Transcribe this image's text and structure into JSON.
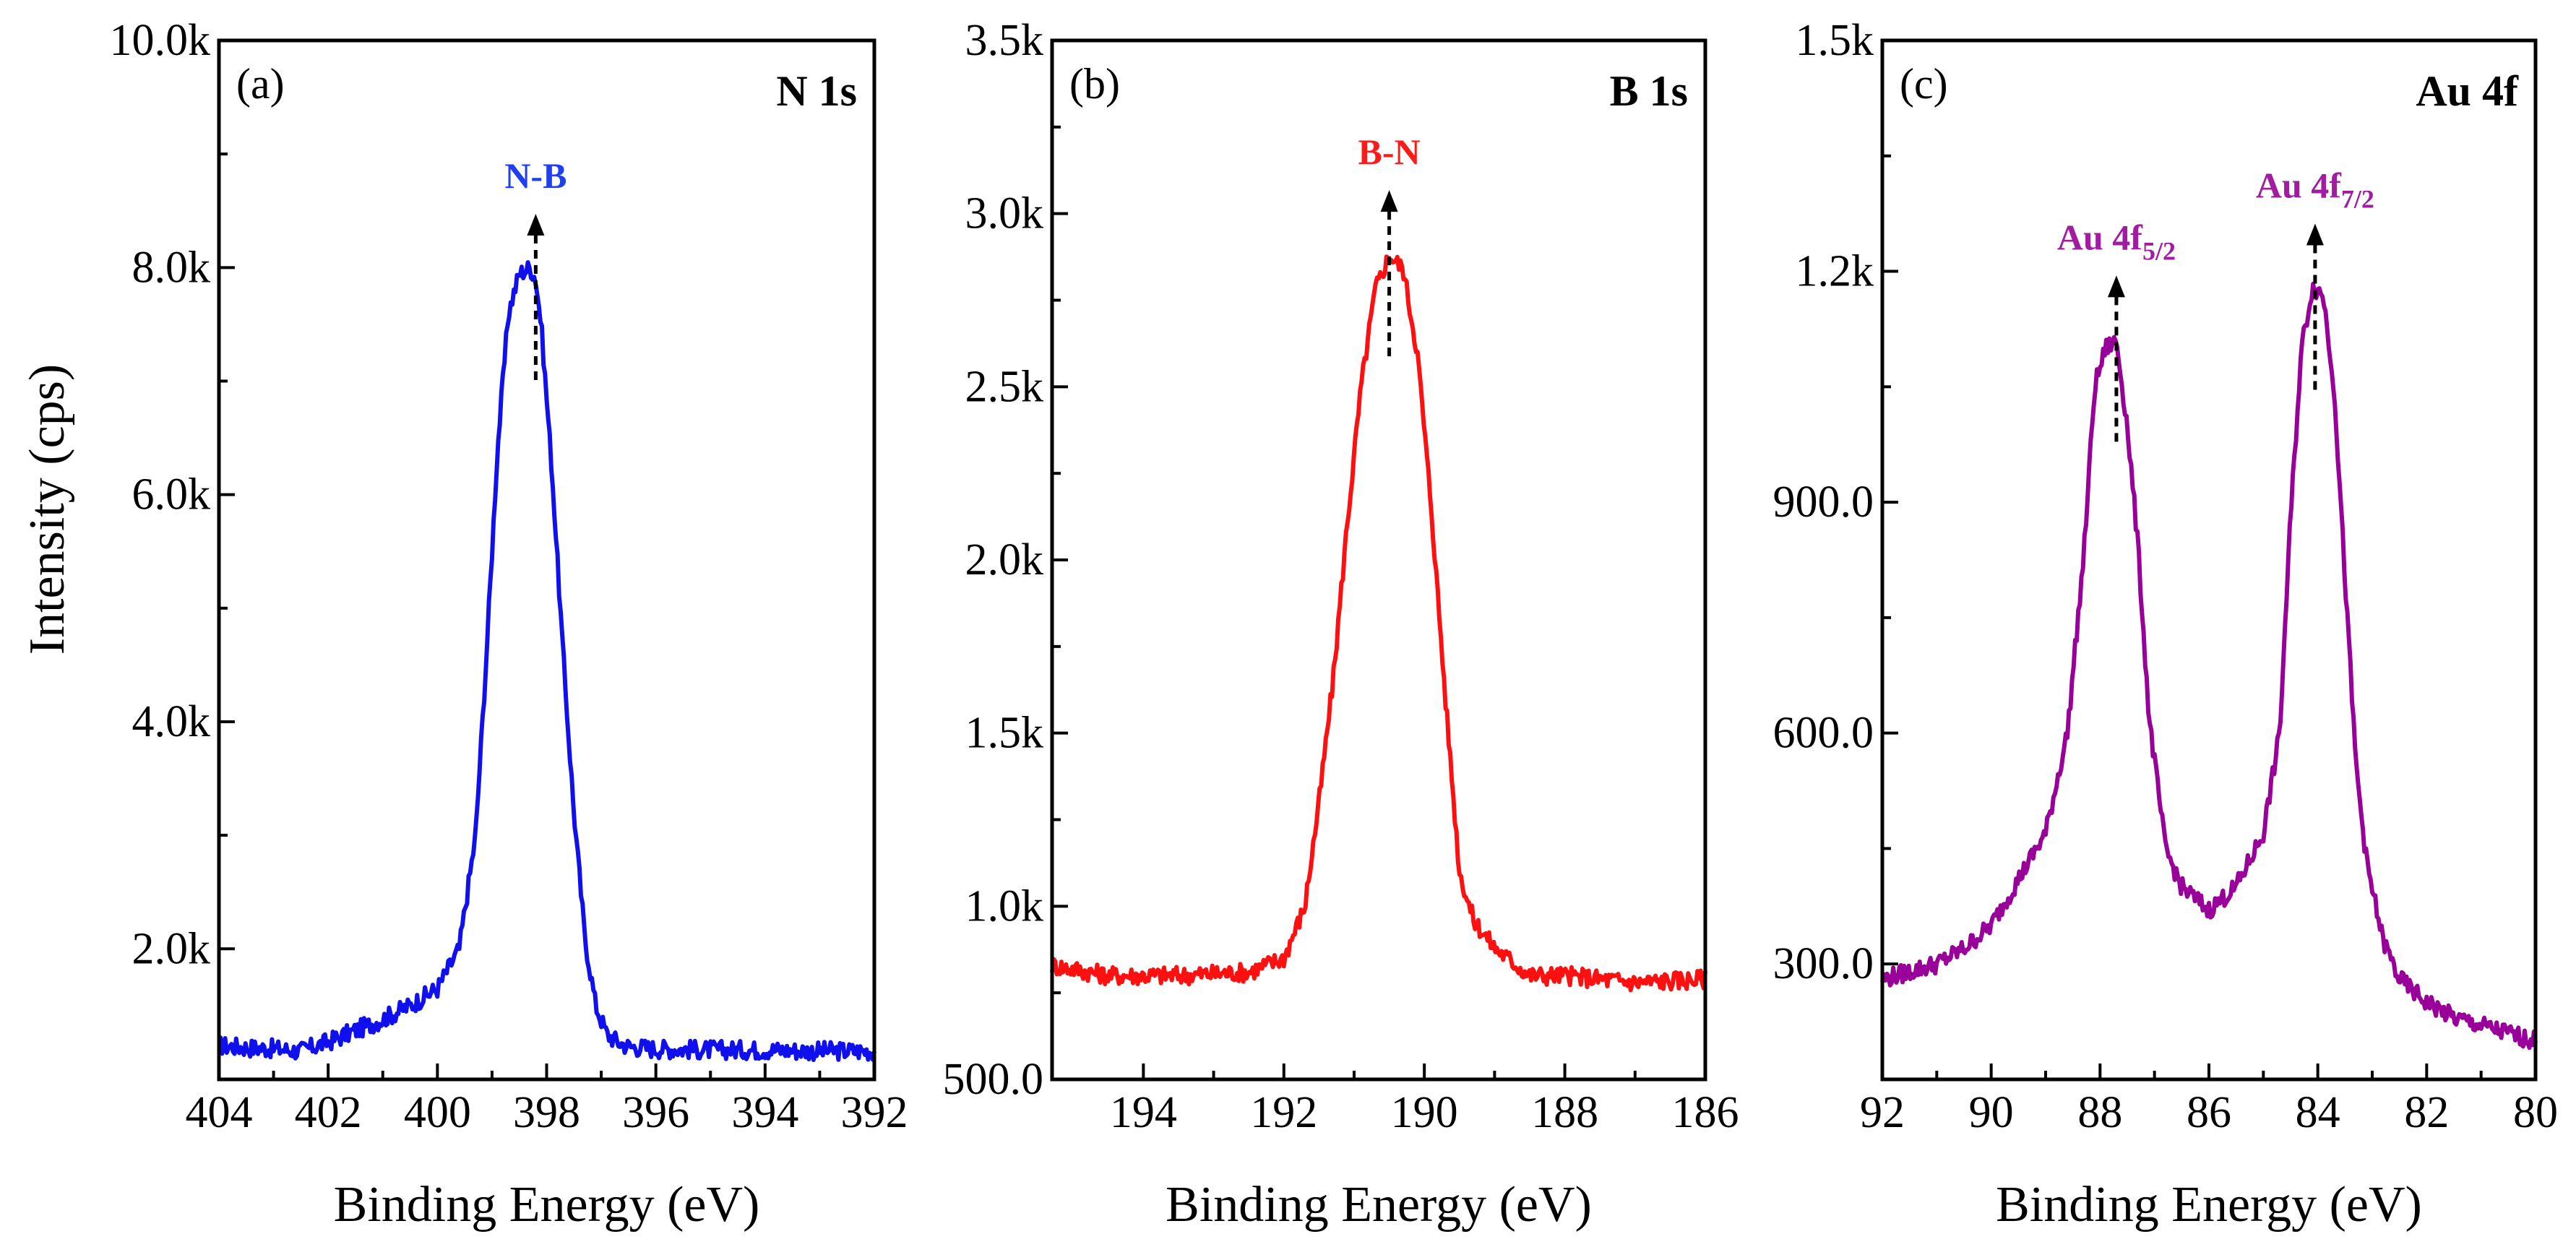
{
  "figure": {
    "ylabel": "Intensity (cps)"
  },
  "chart_data": [
    {
      "type": "line",
      "panel": "(a)",
      "element": "N 1s",
      "xlabel": "Binding Energy (eV)",
      "ylabel": "Intensity (cps)",
      "xlim": [
        404,
        392
      ],
      "ylim": [
        850,
        10000
      ],
      "xticks": [
        404,
        402,
        400,
        398,
        396,
        394,
        392
      ],
      "xtick_labels": [
        "404",
        "402",
        "400",
        "398",
        "396",
        "394",
        "392"
      ],
      "yticks": [
        2000,
        4000,
        6000,
        8000,
        10000
      ],
      "ytick_labels": [
        "2.0k",
        "4.0k",
        "6.0k",
        "8.0k",
        "10.0k"
      ],
      "color": "#1010ee",
      "series": [
        {
          "name": "N 1s",
          "x": [
            404,
            403.5,
            403,
            402.5,
            402,
            401.5,
            401,
            400.5,
            400,
            399.6,
            399.3,
            399.1,
            398.9,
            398.7,
            398.5,
            398.3,
            398.2,
            398.1,
            397.9,
            397.7,
            397.5,
            397.3,
            397.1,
            396.9,
            396.7,
            396.5,
            396,
            395,
            394,
            393,
            392
          ],
          "y": [
            1150,
            1130,
            1120,
            1100,
            1180,
            1280,
            1380,
            1500,
            1650,
            2000,
            3000,
            4600,
            6400,
            7600,
            7950,
            8000,
            7900,
            7500,
            6200,
            4600,
            3200,
            2100,
            1500,
            1250,
            1180,
            1140,
            1120,
            1110,
            1110,
            1100,
            1100
          ]
        }
      ],
      "annotations": [
        {
          "text": "N-B",
          "x": 398.2,
          "color": "#1f3ff0"
        }
      ]
    },
    {
      "type": "line",
      "panel": "(b)",
      "element": "B 1s",
      "xlabel": "Binding Energy (eV)",
      "ylabel": "Intensity (cps)",
      "xlim": [
        195.3,
        186
      ],
      "ylim": [
        500,
        3500
      ],
      "xticks": [
        194,
        192,
        190,
        188,
        186
      ],
      "xtick_labels": [
        "194",
        "192",
        "190",
        "188",
        "186"
      ],
      "yticks": [
        500,
        1000,
        1500,
        2000,
        2500,
        3000,
        3500
      ],
      "ytick_labels": [
        "500.0",
        "1.0k",
        "1.5k",
        "2.0k",
        "2.5k",
        "3.0k",
        "3.5k"
      ],
      "color": "#ff1010",
      "series": [
        {
          "name": "B 1s",
          "x": [
            195.3,
            194.5,
            193.5,
            192.5,
            192,
            191.7,
            191.5,
            191.3,
            191.1,
            190.9,
            190.7,
            190.5,
            190.3,
            190.1,
            189.9,
            189.7,
            189.5,
            189.3,
            189,
            188.5,
            188,
            187,
            186
          ],
          "y": [
            830,
            800,
            800,
            810,
            850,
            1000,
            1300,
            1650,
            2100,
            2500,
            2780,
            2880,
            2840,
            2600,
            2150,
            1600,
            1100,
            960,
            880,
            800,
            800,
            780,
            790
          ]
        }
      ],
      "annotations": [
        {
          "text": "B-N",
          "x": 190.5,
          "color": "#ff1a1a"
        }
      ]
    },
    {
      "type": "line",
      "panel": "(c)",
      "element": "Au 4f",
      "xlabel": "Binding Energy (eV)",
      "ylabel": "Intensity (cps)",
      "xlim": [
        92,
        80
      ],
      "ylim": [
        150,
        1500
      ],
      "xticks": [
        92,
        90,
        88,
        86,
        84,
        82,
        80
      ],
      "xtick_labels": [
        "92",
        "90",
        "88",
        "86",
        "84",
        "82",
        "80"
      ],
      "yticks": [
        300,
        600,
        900,
        1200,
        1500
      ],
      "ytick_labels": [
        "300.0",
        "600.0",
        "900.0",
        "1.2k",
        "1.5k"
      ],
      "color": "#990099",
      "series": [
        {
          "name": "Au 4f",
          "x": [
            92,
            91.5,
            91,
            90.5,
            90,
            89.5,
            89,
            88.6,
            88.3,
            88.1,
            87.9,
            87.7,
            87.5,
            87.3,
            87.1,
            86.8,
            86.5,
            86,
            85.5,
            85,
            84.7,
            84.5,
            84.3,
            84.1,
            83.9,
            83.7,
            83.5,
            83.3,
            83.1,
            82.8,
            82.5,
            82,
            81.5,
            81,
            80.5,
            80
          ],
          "y": [
            280,
            290,
            300,
            320,
            350,
            410,
            470,
            600,
            830,
            1050,
            1100,
            1110,
            1000,
            840,
            620,
            450,
            400,
            370,
            400,
            470,
            600,
            880,
            1100,
            1180,
            1170,
            1050,
            800,
            560,
            430,
            330,
            280,
            250,
            230,
            220,
            210,
            200
          ]
        }
      ],
      "annotations": [
        {
          "text_main": "Au 4f",
          "text_sub": "5/2",
          "x": 87.7,
          "color": "#a01ca0"
        },
        {
          "text_main": "Au 4f",
          "text_sub": "7/2",
          "x": 84.05,
          "color": "#a01ca0"
        }
      ]
    }
  ]
}
